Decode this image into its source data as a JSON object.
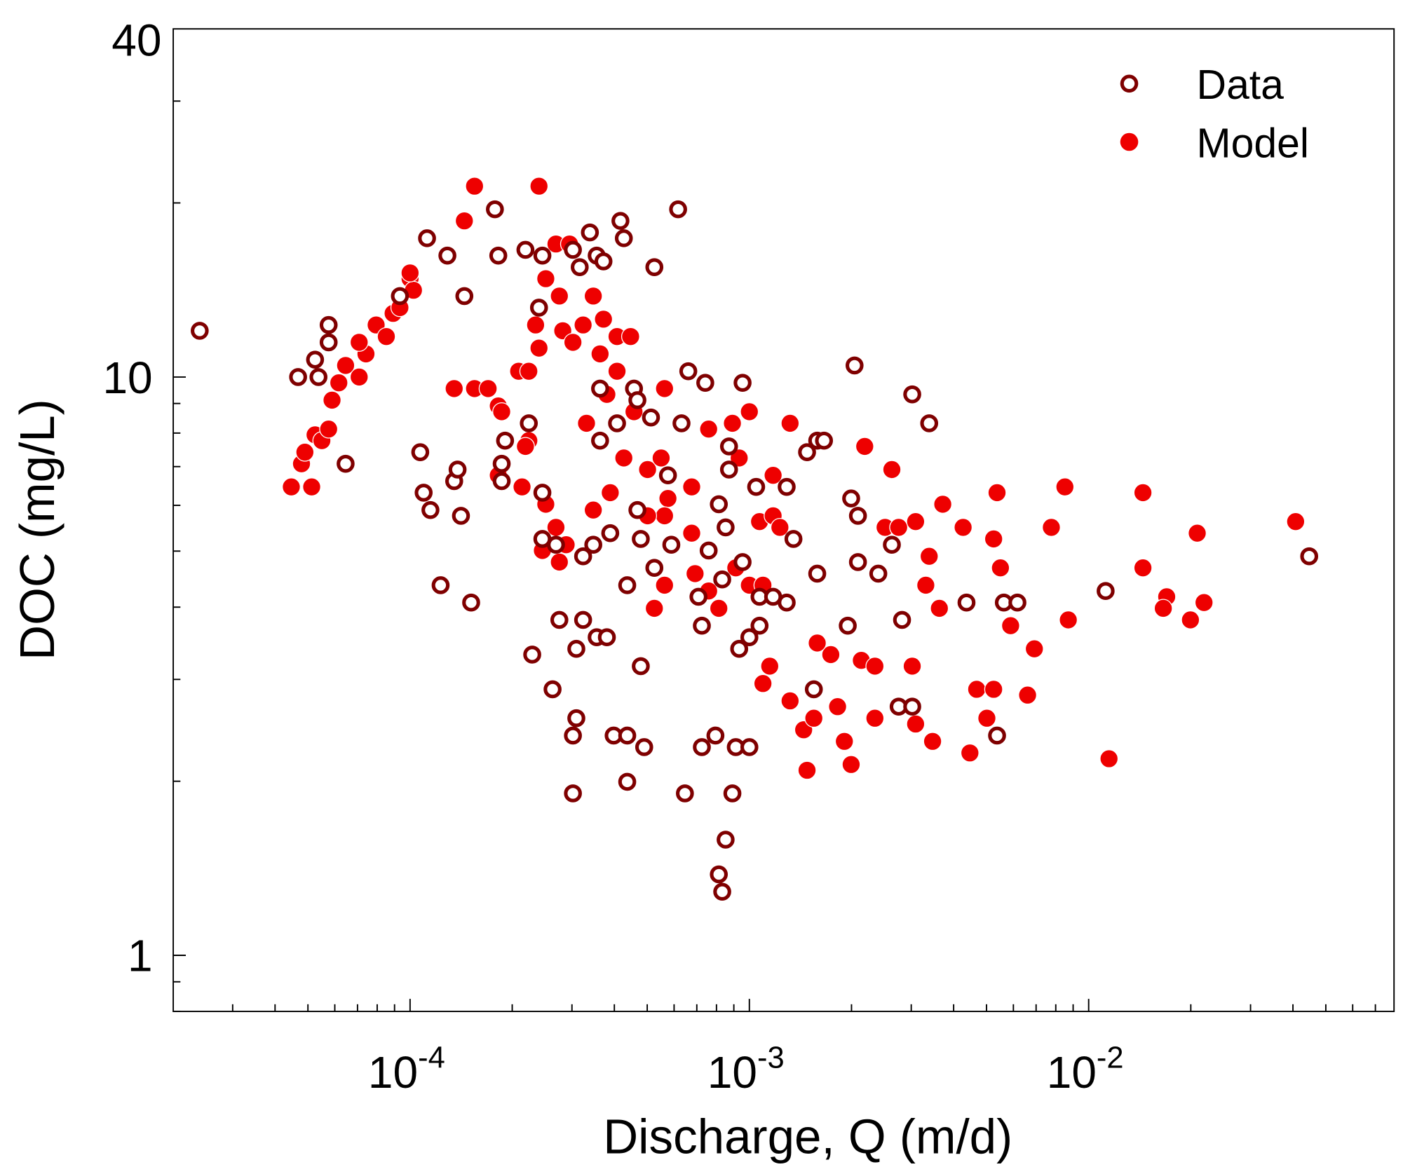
{
  "chart_data": {
    "type": "scatter",
    "title": "",
    "xlabel": "Discharge, Q (m/d)",
    "ylabel": "DOC (mg/L)",
    "xscale": "log",
    "yscale": "log",
    "xlim_log10": [
      -4.698,
      -1.1
    ],
    "ylim_log10": [
      -0.097,
      1.602
    ],
    "grid": false,
    "legend_placement": "top-right",
    "x_ticks": [
      {
        "value": -4,
        "base": "10",
        "exp": "-4"
      },
      {
        "value": -3,
        "base": "10",
        "exp": "-3"
      },
      {
        "value": -2,
        "base": "10",
        "exp": "-2"
      }
    ],
    "y_ticks": [
      {
        "value": 1,
        "label": "1"
      },
      {
        "value": 10,
        "label": "10"
      },
      {
        "value": 40,
        "label": "40"
      }
    ],
    "point_format": "[log10(Q), log10(DOC)]",
    "series": [
      {
        "name": "Data",
        "marker": "open-circle",
        "color": "#7f0000",
        "points": [
          [
            -4.62,
            1.08
          ],
          [
            -4.33,
            1.0
          ],
          [
            -4.28,
            1.03
          ],
          [
            -4.27,
            1.0
          ],
          [
            -4.24,
            1.09
          ],
          [
            -4.24,
            1.06
          ],
          [
            -4.19,
            0.85
          ],
          [
            -4.03,
            1.14
          ],
          [
            -3.97,
            0.87
          ],
          [
            -3.96,
            0.8
          ],
          [
            -3.94,
            0.77
          ],
          [
            -3.95,
            1.24
          ],
          [
            -3.89,
            1.21
          ],
          [
            -3.84,
            1.14
          ],
          [
            -3.87,
            0.82
          ],
          [
            -3.86,
            0.84
          ],
          [
            -3.85,
            0.76
          ],
          [
            -3.91,
            0.64
          ],
          [
            -3.82,
            0.61
          ],
          [
            -3.75,
            1.29
          ],
          [
            -3.74,
            1.21
          ],
          [
            -3.66,
            1.22
          ],
          [
            -3.61,
            1.21
          ],
          [
            -3.62,
            1.12
          ],
          [
            -3.65,
            0.92
          ],
          [
            -3.72,
            0.89
          ],
          [
            -3.73,
            0.85
          ],
          [
            -3.73,
            0.82
          ],
          [
            -3.61,
            0.8
          ],
          [
            -3.61,
            0.72
          ],
          [
            -3.57,
            0.71
          ],
          [
            -3.52,
            1.22
          ],
          [
            -3.5,
            1.19
          ],
          [
            -3.47,
            1.25
          ],
          [
            -3.45,
            1.21
          ],
          [
            -3.43,
            1.2
          ],
          [
            -3.38,
            1.27
          ],
          [
            -3.37,
            1.24
          ],
          [
            -3.28,
            1.19
          ],
          [
            -3.21,
            1.29
          ],
          [
            -3.18,
            1.01
          ],
          [
            -3.13,
            0.99
          ],
          [
            -3.02,
            0.99
          ],
          [
            -3.44,
            0.98
          ],
          [
            -3.39,
            0.92
          ],
          [
            -3.34,
            0.98
          ],
          [
            -3.33,
            0.96
          ],
          [
            -3.29,
            0.93
          ],
          [
            -3.44,
            0.89
          ],
          [
            -3.2,
            0.92
          ],
          [
            -3.24,
            0.83
          ],
          [
            -3.33,
            0.77
          ],
          [
            -3.32,
            0.72
          ],
          [
            -3.28,
            0.67
          ],
          [
            -3.46,
            0.71
          ],
          [
            -3.41,
            0.73
          ],
          [
            -3.49,
            0.69
          ],
          [
            -3.36,
            0.64
          ],
          [
            -3.56,
            0.58
          ],
          [
            -3.49,
            0.58
          ],
          [
            -3.51,
            0.53
          ],
          [
            -3.45,
            0.55
          ],
          [
            -3.42,
            0.55
          ],
          [
            -3.64,
            0.52
          ],
          [
            -3.58,
            0.46
          ],
          [
            -3.51,
            0.41
          ],
          [
            -3.52,
            0.38
          ],
          [
            -3.4,
            0.38
          ],
          [
            -3.36,
            0.38
          ],
          [
            -3.31,
            0.36
          ],
          [
            -3.52,
            0.28
          ],
          [
            -3.36,
            0.3
          ],
          [
            -3.32,
            0.5
          ],
          [
            -3.23,
            0.71
          ],
          [
            -3.15,
            0.62
          ],
          [
            -3.14,
            0.57
          ],
          [
            -3.12,
            0.7
          ],
          [
            -3.08,
            0.65
          ],
          [
            -3.09,
            0.78
          ],
          [
            -3.07,
            0.74
          ],
          [
            -3.06,
            0.84
          ],
          [
            -3.06,
            0.88
          ],
          [
            -3.02,
            0.68
          ],
          [
            -2.98,
            0.81
          ],
          [
            -2.97,
            0.62
          ],
          [
            -2.93,
            0.62
          ],
          [
            -2.89,
            0.61
          ],
          [
            -2.87,
            0.72
          ],
          [
            -2.89,
            0.81
          ],
          [
            -2.97,
            0.57
          ],
          [
            -3.0,
            0.55
          ],
          [
            -3.03,
            0.53
          ],
          [
            -3.14,
            0.36
          ],
          [
            -3.1,
            0.38
          ],
          [
            -3.04,
            0.36
          ],
          [
            -3.0,
            0.36
          ],
          [
            -3.19,
            0.28
          ],
          [
            -3.05,
            0.28
          ],
          [
            -3.07,
            0.2
          ],
          [
            -3.09,
            0.14
          ],
          [
            -3.08,
            0.11
          ],
          [
            -2.83,
            0.87
          ],
          [
            -2.8,
            0.89
          ],
          [
            -2.78,
            0.89
          ],
          [
            -2.8,
            0.66
          ],
          [
            -2.81,
            0.46
          ],
          [
            -2.71,
            0.57
          ],
          [
            -2.7,
            0.79
          ],
          [
            -2.68,
            0.76
          ],
          [
            -2.68,
            0.68
          ],
          [
            -2.62,
            0.66
          ],
          [
            -2.58,
            0.71
          ],
          [
            -2.69,
            1.02
          ],
          [
            -2.52,
            0.97
          ],
          [
            -2.47,
            0.92
          ],
          [
            -2.55,
            0.58
          ],
          [
            -2.56,
            0.43
          ],
          [
            -2.52,
            0.43
          ],
          [
            -2.36,
            0.61
          ],
          [
            -2.25,
            0.61
          ],
          [
            -2.21,
            0.61
          ],
          [
            -2.27,
            0.38
          ],
          [
            -1.95,
            0.63
          ],
          [
            -1.35,
            0.69
          ]
        ]
      },
      {
        "name": "Model",
        "marker": "filled-circle",
        "color": "#ee0000",
        "points": [
          [
            -4.35,
            0.81
          ],
          [
            -4.29,
            0.81
          ],
          [
            -4.32,
            0.85
          ],
          [
            -4.31,
            0.87
          ],
          [
            -4.28,
            0.9
          ],
          [
            -4.26,
            0.89
          ],
          [
            -4.24,
            0.91
          ],
          [
            -4.23,
            0.96
          ],
          [
            -4.21,
            0.99
          ],
          [
            -4.19,
            1.02
          ],
          [
            -4.15,
            1.0
          ],
          [
            -4.13,
            1.04
          ],
          [
            -4.15,
            1.06
          ],
          [
            -4.1,
            1.09
          ],
          [
            -4.07,
            1.07
          ],
          [
            -4.05,
            1.11
          ],
          [
            -4.03,
            1.12
          ],
          [
            -4.0,
            1.17
          ],
          [
            -3.99,
            1.15
          ],
          [
            -4.0,
            1.18
          ],
          [
            -3.84,
            1.27
          ],
          [
            -3.81,
            1.33
          ],
          [
            -3.62,
            1.33
          ],
          [
            -3.87,
            0.98
          ],
          [
            -3.81,
            0.98
          ],
          [
            -3.77,
            0.98
          ],
          [
            -3.74,
            0.95
          ],
          [
            -3.73,
            0.94
          ],
          [
            -3.68,
            1.01
          ],
          [
            -3.65,
            1.01
          ],
          [
            -3.62,
            1.05
          ],
          [
            -3.63,
            1.09
          ],
          [
            -3.6,
            1.17
          ],
          [
            -3.57,
            1.23
          ],
          [
            -3.53,
            1.23
          ],
          [
            -3.56,
            1.14
          ],
          [
            -3.55,
            1.08
          ],
          [
            -3.52,
            1.06
          ],
          [
            -3.49,
            1.09
          ],
          [
            -3.46,
            1.14
          ],
          [
            -3.43,
            1.1
          ],
          [
            -3.44,
            1.04
          ],
          [
            -3.39,
            1.07
          ],
          [
            -3.35,
            1.07
          ],
          [
            -3.39,
            1.01
          ],
          [
            -3.34,
            0.98
          ],
          [
            -3.25,
            0.98
          ],
          [
            -3.34,
            0.94
          ],
          [
            -3.37,
            0.86
          ],
          [
            -3.3,
            0.84
          ],
          [
            -3.26,
            0.86
          ],
          [
            -3.24,
            0.79
          ],
          [
            -3.17,
            0.81
          ],
          [
            -3.25,
            0.76
          ],
          [
            -3.17,
            0.73
          ],
          [
            -3.3,
            0.76
          ],
          [
            -3.25,
            0.64
          ],
          [
            -3.28,
            0.6
          ],
          [
            -3.16,
            0.66
          ],
          [
            -3.12,
            0.63
          ],
          [
            -3.09,
            0.6
          ],
          [
            -3.04,
            0.67
          ],
          [
            -3.0,
            0.64
          ],
          [
            -2.97,
            0.75
          ],
          [
            -2.93,
            0.76
          ],
          [
            -2.91,
            0.74
          ],
          [
            -2.88,
            0.92
          ],
          [
            -3.0,
            0.94
          ],
          [
            -3.05,
            0.92
          ],
          [
            -3.03,
            0.86
          ],
          [
            -3.12,
            0.91
          ],
          [
            -2.93,
            0.83
          ],
          [
            -2.96,
            0.64
          ],
          [
            -2.94,
            0.5
          ],
          [
            -2.96,
            0.47
          ],
          [
            -2.88,
            0.44
          ],
          [
            -2.84,
            0.39
          ],
          [
            -2.81,
            0.41
          ],
          [
            -2.83,
            0.32
          ],
          [
            -2.72,
            0.37
          ],
          [
            -2.7,
            0.33
          ],
          [
            -2.74,
            0.43
          ],
          [
            -2.67,
            0.51
          ],
          [
            -2.63,
            0.5
          ],
          [
            -2.63,
            0.41
          ],
          [
            -2.52,
            0.5
          ],
          [
            -2.51,
            0.4
          ],
          [
            -2.46,
            0.37
          ],
          [
            -2.48,
            0.64
          ],
          [
            -2.43,
            0.78
          ],
          [
            -2.37,
            0.74
          ],
          [
            -2.27,
            0.8
          ],
          [
            -2.28,
            0.72
          ],
          [
            -2.26,
            0.67
          ],
          [
            -2.23,
            0.57
          ],
          [
            -2.33,
            0.46
          ],
          [
            -2.28,
            0.46
          ],
          [
            -2.18,
            0.45
          ],
          [
            -2.3,
            0.41
          ],
          [
            -2.16,
            0.53
          ],
          [
            -2.11,
            0.74
          ],
          [
            -2.07,
            0.81
          ],
          [
            -2.06,
            0.58
          ],
          [
            -1.94,
            0.34
          ],
          [
            -1.84,
            0.8
          ],
          [
            -1.84,
            0.67
          ],
          [
            -1.77,
            0.62
          ],
          [
            -1.78,
            0.6
          ],
          [
            -1.68,
            0.73
          ],
          [
            -1.7,
            0.58
          ],
          [
            -1.66,
            0.61
          ],
          [
            -1.39,
            0.75
          ],
          [
            -2.76,
            0.52
          ],
          [
            -2.8,
            0.54
          ],
          [
            -2.66,
            0.88
          ],
          [
            -2.58,
            0.84
          ],
          [
            -2.6,
            0.74
          ],
          [
            -2.56,
            0.74
          ],
          [
            -2.51,
            0.75
          ],
          [
            -2.47,
            0.69
          ],
          [
            -2.44,
            0.6
          ],
          [
            -2.35,
            0.35
          ],
          [
            -3.65,
            0.89
          ],
          [
            -3.67,
            0.81
          ],
          [
            -3.66,
            0.88
          ],
          [
            -3.74,
            0.83
          ],
          [
            -3.6,
            0.78
          ],
          [
            -3.57,
            0.74
          ],
          [
            -3.54,
            0.71
          ],
          [
            -3.61,
            0.7
          ],
          [
            -3.56,
            0.68
          ],
          [
            -3.46,
            0.77
          ],
          [
            -3.41,
            0.8
          ],
          [
            -3.42,
            0.97
          ],
          [
            -3.48,
            0.92
          ]
        ]
      }
    ]
  }
}
